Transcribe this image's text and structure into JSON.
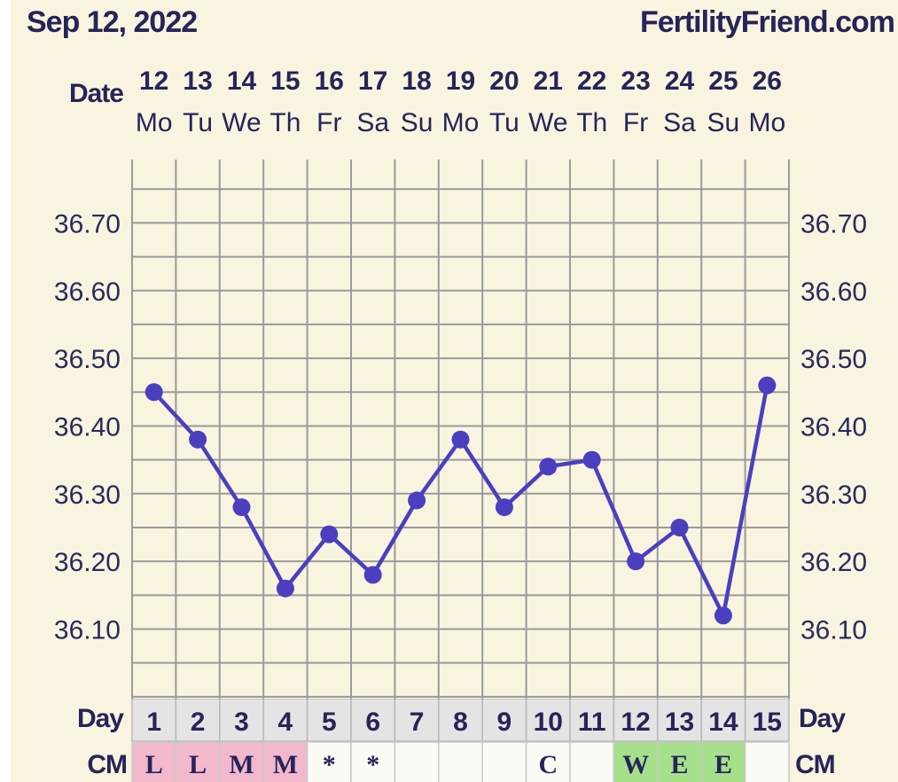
{
  "header": {
    "date": "Sep 12, 2022",
    "site": "FertilityFriend.com"
  },
  "colors": {
    "background": "#f8f4df",
    "line": "#4b3fbf",
    "grid": "#9a9a9a",
    "cm_pink": "#f2b8cc",
    "cm_green": "#a6e08a",
    "cm_white": "#fbfbf5",
    "day_cell": "#e4e4e4"
  },
  "chart_data": {
    "type": "line",
    "xlabel": "Date",
    "dates": [
      "12",
      "13",
      "14",
      "15",
      "16",
      "17",
      "18",
      "19",
      "20",
      "21",
      "22",
      "23",
      "24",
      "25",
      "26"
    ],
    "weekdays": [
      "Mo",
      "Tu",
      "We",
      "Th",
      "Fr",
      "Sa",
      "Su",
      "Mo",
      "Tu",
      "We",
      "Th",
      "Fr",
      "Sa",
      "Su",
      "Mo"
    ],
    "values": [
      36.45,
      36.38,
      36.28,
      36.16,
      36.24,
      36.18,
      36.29,
      36.38,
      36.28,
      36.34,
      36.35,
      36.2,
      36.25,
      36.12,
      36.46
    ],
    "y_ticks": [
      "36.70",
      "36.60",
      "36.50",
      "36.40",
      "36.30",
      "36.20",
      "36.10"
    ],
    "ylim": [
      36.0,
      36.8
    ],
    "grid": true,
    "rows": {
      "day_label": "Day",
      "days": [
        "1",
        "2",
        "3",
        "4",
        "5",
        "6",
        "7",
        "8",
        "9",
        "10",
        "11",
        "12",
        "13",
        "14",
        "15"
      ],
      "cm_label": "CM",
      "cm": [
        "L",
        "L",
        "M",
        "M",
        "*",
        "*",
        "",
        "",
        "",
        "C",
        "",
        "W",
        "E",
        "E",
        ""
      ],
      "cm_color": [
        "pink",
        "pink",
        "pink",
        "pink",
        "white",
        "white",
        "white",
        "white",
        "white",
        "white",
        "white",
        "green",
        "green",
        "green",
        "white"
      ]
    }
  }
}
